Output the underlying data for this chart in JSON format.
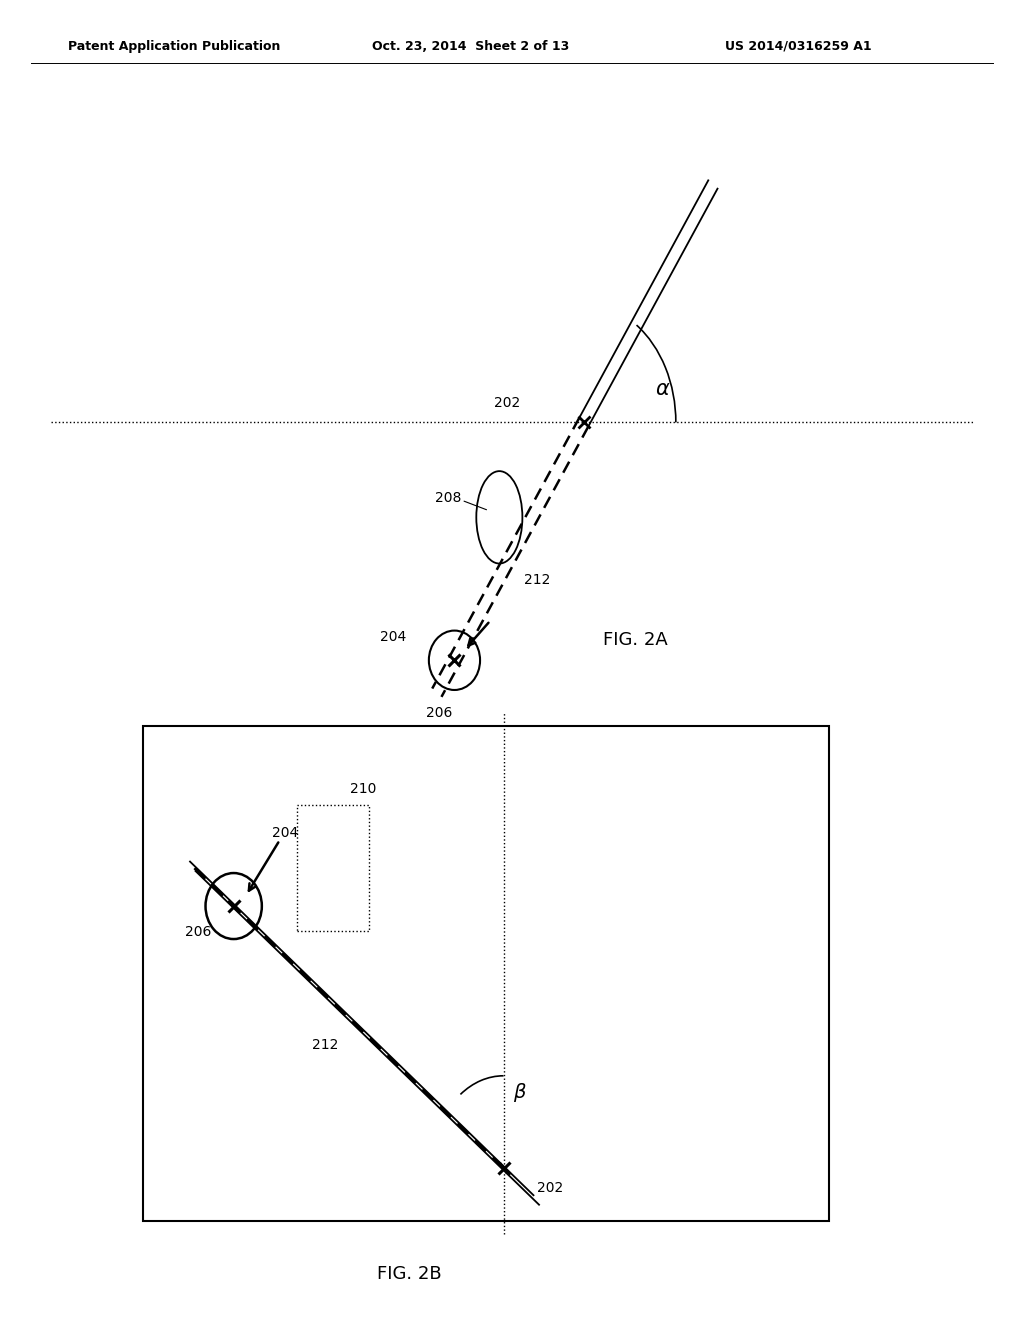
{
  "bg_color": "#ffffff",
  "header_left": "Patent Application Publication",
  "header_center": "Oct. 23, 2014  Sheet 2 of 13",
  "header_right": "US 2014/0316259 A1",
  "fig2a_label": "FIG. 2A",
  "fig2b_label": "FIG. 2B",
  "alpha_label": "α",
  "beta_label": "β",
  "label_202_a": "202",
  "label_204_a": "204",
  "label_206_a": "206",
  "label_208": "208",
  "label_212_a": "212",
  "label_202_b": "202",
  "label_204_b": "204",
  "label_206_b": "206",
  "label_210": "210",
  "label_212_b": "212"
}
